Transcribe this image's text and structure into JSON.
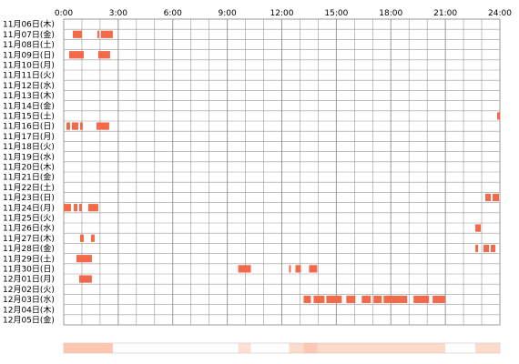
{
  "chart_data": {
    "type": "heatmap",
    "title": "",
    "xlabel": "",
    "ylabel": "",
    "x_unit": "hour",
    "xlim": [
      0,
      24
    ],
    "x_ticks": [
      "0:00",
      "3:00",
      "6:00",
      "9:00",
      "12:00",
      "15:00",
      "18:00",
      "21:00",
      "24:00"
    ],
    "grid": true,
    "colors": {
      "active": "#f26a4a",
      "highlight": "#ffffff",
      "grid": "#999999",
      "summary_base": "#fff1ea",
      "summary_strong": "#fcb99e"
    },
    "days": [
      {
        "label": "11月06日(木)",
        "intervals": []
      },
      {
        "label": "11月07日(金)",
        "intervals": [
          [
            0.5,
            1.0
          ],
          [
            1.85,
            1.95
          ],
          [
            2.05,
            2.7
          ]
        ]
      },
      {
        "label": "11月08日(土)",
        "intervals": []
      },
      {
        "label": "11月09日(日)",
        "intervals": [
          [
            0.3,
            1.1
          ],
          [
            1.9,
            2.55
          ]
        ]
      },
      {
        "label": "11月10日(月)",
        "intervals": []
      },
      {
        "label": "11月11日(火)",
        "intervals": []
      },
      {
        "label": "11月12日(水)",
        "intervals": []
      },
      {
        "label": "11月13日(木)",
        "intervals": []
      },
      {
        "label": "11月14日(金)",
        "intervals": []
      },
      {
        "label": "11月15日(土)",
        "intervals": [
          [
            23.85,
            24.0
          ]
        ]
      },
      {
        "label": "11月16日(日)",
        "intervals": [
          [
            0.15,
            0.35
          ],
          [
            0.45,
            0.8
          ],
          [
            0.9,
            1.05
          ],
          [
            1.8,
            2.5
          ]
        ]
      },
      {
        "label": "11月17日(月)",
        "intervals": []
      },
      {
        "label": "11月18日(火)",
        "intervals": []
      },
      {
        "label": "11月19日(水)",
        "intervals": []
      },
      {
        "label": "11月20日(木)",
        "intervals": []
      },
      {
        "label": "11月21日(金)",
        "intervals": []
      },
      {
        "label": "11月22日(土)",
        "intervals": []
      },
      {
        "label": "11月23日(日)",
        "intervals": [
          [
            23.2,
            23.5
          ],
          [
            23.6,
            23.95
          ]
        ]
      },
      {
        "label": "11月24日(月)",
        "intervals": [
          [
            0.0,
            0.4
          ],
          [
            0.55,
            0.75
          ],
          [
            0.85,
            1.0
          ],
          [
            1.35,
            1.9
          ]
        ]
      },
      {
        "label": "11月25日(火)",
        "intervals": []
      },
      {
        "label": "11月26日(水)",
        "intervals": [
          [
            22.65,
            22.95
          ]
        ]
      },
      {
        "label": "11月27日(木)",
        "intervals": [
          [
            0.9,
            1.1
          ],
          [
            1.5,
            1.7
          ]
        ]
      },
      {
        "label": "11月28日(金)",
        "intervals": [
          [
            22.65,
            22.8
          ],
          [
            23.1,
            23.4
          ],
          [
            23.5,
            23.75
          ]
        ]
      },
      {
        "label": "11月29日(土)",
        "intervals": [
          [
            0.7,
            1.55
          ]
        ]
      },
      {
        "label": "11月30日(日)",
        "intervals": [
          [
            9.6,
            10.3
          ],
          [
            12.4,
            12.5
          ],
          [
            12.75,
            13.05
          ],
          [
            13.5,
            13.95
          ]
        ]
      },
      {
        "label": "12月01日(月)",
        "intervals": [
          [
            0.85,
            1.55
          ]
        ]
      },
      {
        "label": "12月02日(火)",
        "intervals": []
      },
      {
        "label": "12月03日(水)",
        "intervals": [
          [
            13.2,
            13.6
          ],
          [
            13.75,
            14.35
          ],
          [
            14.45,
            15.3
          ],
          [
            15.55,
            16.05
          ],
          [
            16.4,
            16.9
          ],
          [
            17.05,
            17.5
          ],
          [
            17.6,
            18.9
          ],
          [
            19.25,
            20.1
          ],
          [
            20.3,
            21.0
          ]
        ]
      },
      {
        "label": "12月04日(木)",
        "intervals": []
      },
      {
        "label": "12月05日(金)",
        "intervals": []
      }
    ],
    "summary_bins": [
      [
        0.0,
        2.7,
        0.8
      ],
      [
        9.6,
        10.3,
        0.45
      ],
      [
        12.4,
        13.95,
        0.5
      ],
      [
        13.2,
        21.0,
        0.55
      ],
      [
        22.65,
        24.0,
        0.5
      ]
    ]
  }
}
